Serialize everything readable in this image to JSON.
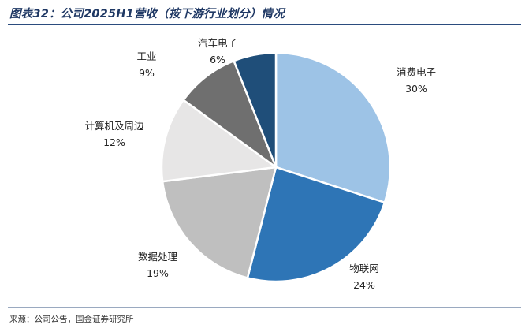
{
  "title": "图表32：公司2025H1营收（按下游行业划分）情况",
  "source": "来源：公司公告，国金证券研究所",
  "chart_data": {
    "type": "pie",
    "start_angle_deg": 0,
    "direction": "clockwise",
    "slice_border_color": "#ffffff",
    "slices": [
      {
        "label": "消费电子",
        "value": 30,
        "value_label": "30%",
        "color": "#9dc3e6"
      },
      {
        "label": "物联网",
        "value": 24,
        "value_label": "24%",
        "color": "#2e75b6"
      },
      {
        "label": "数据处理",
        "value": 19,
        "value_label": "19%",
        "color": "#bfbfbf"
      },
      {
        "label": "计算机及周边",
        "value": 12,
        "value_label": "12%",
        "color": "#e7e6e6"
      },
      {
        "label": "工业",
        "value": 9,
        "value_label": "9%",
        "color": "#6f6f6f"
      },
      {
        "label": "汽车电子",
        "value": 6,
        "value_label": "6%",
        "color": "#1f4e79"
      }
    ]
  }
}
